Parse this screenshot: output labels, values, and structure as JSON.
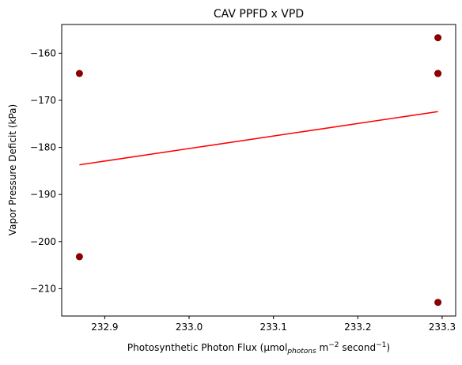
{
  "colors": {
    "background": "#ffffff",
    "axes": "#000000",
    "point_color": "#8b0000",
    "fit_line_color": "#ff0000"
  },
  "chart_data": {
    "type": "scatter",
    "title": "CAV PPFD x VPD",
    "xlabel": {
      "prefix": "Photosynthetic Photon Flux (μmol",
      "subscript": "photons",
      "middle": " m",
      "exp1": "−2",
      "middle2": " second",
      "exp2": "−1",
      "suffix": ")"
    },
    "ylabel": "Vapor Pressure Deficit (kPa)",
    "xlim": [
      232.849,
      233.316
    ],
    "ylim": [
      -215.8,
      -153.9
    ],
    "xticks": [
      232.9,
      233.0,
      233.1,
      233.2,
      233.3
    ],
    "xtick_labels": [
      "232.9",
      "233.0",
      "233.1",
      "233.2",
      "233.3"
    ],
    "yticks": [
      -160,
      -170,
      -180,
      -190,
      -200,
      -210
    ],
    "ytick_labels": [
      "−160",
      "−170",
      "−180",
      "−190",
      "−200",
      "−210"
    ],
    "grid": false,
    "series": [
      {
        "kind": "points",
        "x": [
          232.87,
          232.87,
          233.295,
          233.295,
          233.295,
          233.295
        ],
        "y": [
          -164.3,
          -203.2,
          -156.7,
          -164.3,
          -164.3,
          -212.9
        ]
      },
      {
        "kind": "fit-line",
        "x": [
          232.87,
          233.295
        ],
        "y": [
          -183.7,
          -172.4
        ]
      }
    ]
  }
}
